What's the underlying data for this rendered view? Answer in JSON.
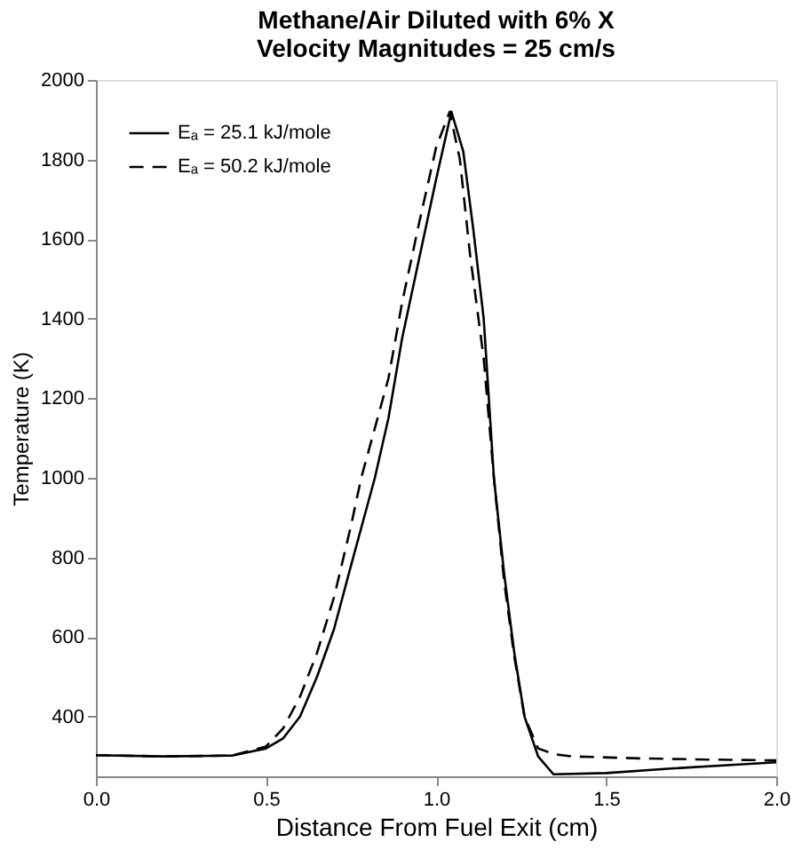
{
  "chart_data": {
    "type": "line",
    "title": [
      "Methane/Air Diluted with 6% X",
      "Velocity Magnitudes = 25 cm/s"
    ],
    "xlabel": "Distance From Fuel Exit (cm)",
    "ylabel": "Temperature (K)",
    "xlim": [
      0,
      2
    ],
    "xticks": [
      {
        "value": 0,
        "label": "0.0"
      },
      0.5,
      {
        "value": 1,
        "label": "1.0"
      },
      1.5,
      {
        "value": 2,
        "label": "2.0"
      }
    ],
    "ylim": [
      250,
      2000
    ],
    "yticks": [
      400,
      600,
      800,
      1000,
      1200,
      1400,
      1600,
      1800,
      2000
    ],
    "grid": false,
    "legend": "top left",
    "marker": "none",
    "series": [
      {
        "name": "Eₐ = 25.1 kJ/mole",
        "color": "#000000",
        "line_style": "solid",
        "x": [
          0,
          0.2,
          0.4,
          0.5,
          0.55,
          0.6,
          0.65,
          0.7,
          0.75,
          0.82,
          0.86,
          0.9,
          0.95,
          1.0,
          1.045,
          1.08,
          1.11,
          1.14,
          1.17,
          1.2,
          1.23,
          1.26,
          1.3,
          1.345,
          1.5,
          1.7,
          1.9,
          2.0
        ],
        "values": [
          303,
          300,
          302,
          320,
          345,
          400,
          500,
          620,
          780,
          1000,
          1150,
          1350,
          1550,
          1750,
          1920,
          1820,
          1620,
          1400,
          1000,
          760,
          560,
          400,
          300,
          255,
          258,
          270,
          280,
          285
        ]
      },
      {
        "name": "Eₐ = 50.2 kJ/mole",
        "color": "#000000",
        "line_style": "dashed",
        "x": [
          0,
          0.2,
          0.4,
          0.5,
          0.55,
          0.6,
          0.65,
          0.7,
          0.75,
          0.78,
          0.86,
          0.9,
          0.95,
          1.0,
          1.04,
          1.07,
          1.1,
          1.14,
          1.17,
          1.2,
          1.23,
          1.26,
          1.3,
          1.35,
          1.4,
          1.6,
          1.8,
          2.0
        ],
        "values": [
          303,
          300,
          302,
          325,
          370,
          450,
          560,
          700,
          880,
          1000,
          1250,
          1440,
          1640,
          1830,
          1920,
          1800,
          1560,
          1300,
          1000,
          740,
          550,
          400,
          320,
          305,
          300,
          295,
          292,
          290
        ]
      }
    ]
  }
}
